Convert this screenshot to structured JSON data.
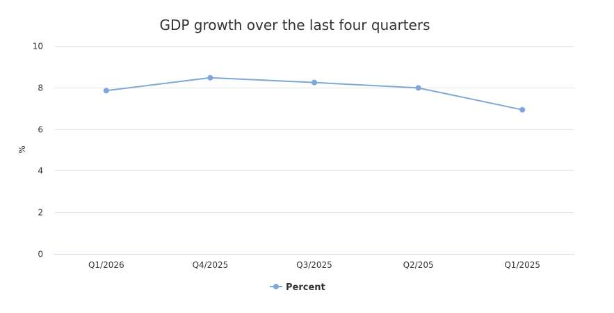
{
  "chart_data": {
    "type": "line",
    "title": "GDP growth over the last four quarters",
    "xlabel": "",
    "ylabel": "%",
    "categories": [
      "Q1/2026",
      "Q4/2025",
      "Q3/2025",
      "Q2/205",
      "Q1/2025"
    ],
    "series": [
      {
        "name": "Percent",
        "values": [
          7.85,
          8.47,
          8.24,
          7.98,
          6.93
        ],
        "color": "#7ea6d9"
      }
    ],
    "ylim": [
      0,
      10
    ],
    "yticks": [
      "0",
      "2",
      "4",
      "6",
      "8",
      "10"
    ],
    "grid": true,
    "legend": "bottom-center"
  }
}
